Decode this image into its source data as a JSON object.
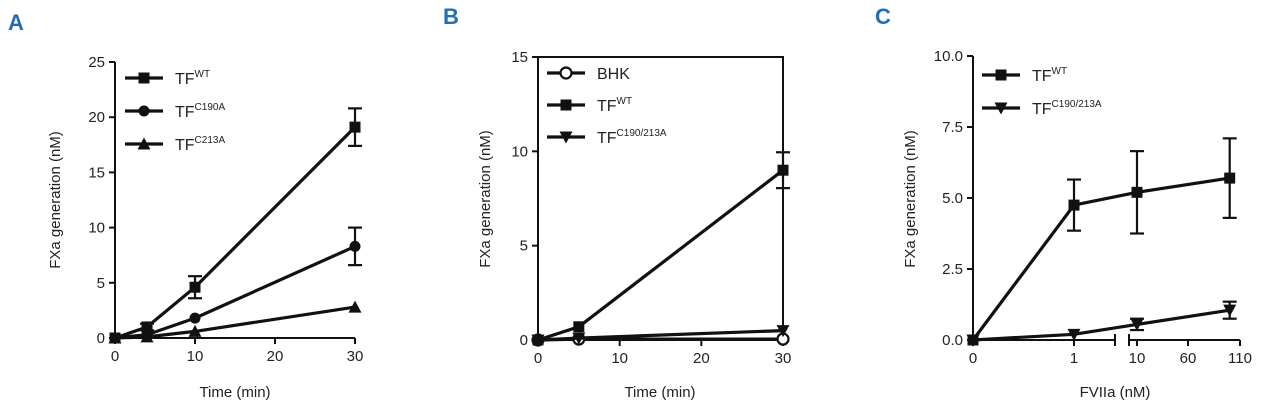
{
  "figure": {
    "colors": {
      "panel_letter": "#1f6fb2",
      "ink": "#111111"
    }
  },
  "chart_data": [
    {
      "panel": "A",
      "type": "line",
      "xlabel": "Time (min)",
      "ylabel": "FXa generation (nM)",
      "xlim": [
        0,
        30
      ],
      "ylim": [
        0,
        25
      ],
      "xticks": [
        0,
        10,
        20,
        30
      ],
      "yticks": [
        0,
        5,
        10,
        15,
        20,
        25
      ],
      "legend_position": "top-left",
      "x": [
        0,
        4,
        10,
        30
      ],
      "series": [
        {
          "name": "TF",
          "sup": "WT",
          "marker": "square",
          "values": [
            0,
            1.0,
            4.6,
            19.1
          ],
          "err": [
            0,
            0.3,
            1.0,
            1.7
          ]
        },
        {
          "name": "TF",
          "sup": "C190A",
          "marker": "circle",
          "values": [
            0,
            0.3,
            1.8,
            8.3
          ],
          "err": [
            0,
            0,
            0,
            1.7
          ]
        },
        {
          "name": "TF",
          "sup": "C213A",
          "marker": "triangle-up",
          "values": [
            0,
            0.1,
            0.6,
            2.8
          ],
          "err": [
            0,
            0,
            0,
            0
          ]
        }
      ]
    },
    {
      "panel": "B",
      "type": "line",
      "xlabel": "Time (min)",
      "ylabel": "FXa generation (nM)",
      "xlim": [
        0,
        30
      ],
      "ylim": [
        0,
        15
      ],
      "xticks": [
        0,
        10,
        20,
        30
      ],
      "yticks": [
        0,
        5,
        10,
        15
      ],
      "legend_position": "top-left",
      "x": [
        0,
        5,
        30
      ],
      "series": [
        {
          "name": "BHK",
          "sup": "",
          "marker": "circle-open",
          "values": [
            0,
            0.05,
            0.05
          ],
          "err": [
            0,
            0,
            0
          ]
        },
        {
          "name": "TF",
          "sup": "WT",
          "marker": "square",
          "values": [
            0,
            0.7,
            9.0
          ],
          "err": [
            0,
            0,
            0.95
          ]
        },
        {
          "name": "TF",
          "sup": "C190/213A",
          "marker": "triangle-down",
          "values": [
            0,
            0.1,
            0.5
          ],
          "err": [
            0,
            0,
            0
          ]
        }
      ]
    },
    {
      "panel": "C",
      "type": "line",
      "xlabel": "FVIIa (nM)",
      "ylabel": "FXa generation (nM)",
      "ylim": [
        0,
        10
      ],
      "xticks": [
        "0",
        "1",
        "10",
        "60",
        "110"
      ],
      "yticks": [
        "0.0",
        "2.5",
        "5.0",
        "7.5",
        "10.0"
      ],
      "x_scale": "segmented",
      "legend_position": "top-left",
      "x": [
        0,
        1,
        10,
        100
      ],
      "series": [
        {
          "name": "TF",
          "sup": "WT",
          "marker": "square",
          "values": [
            0,
            4.75,
            5.2,
            5.7
          ],
          "err": [
            0,
            0.9,
            1.45,
            1.4
          ]
        },
        {
          "name": "TF",
          "sup": "C190/213A",
          "marker": "triangle-down",
          "values": [
            0,
            0.2,
            0.55,
            1.05
          ],
          "err": [
            0,
            0,
            0.2,
            0.3
          ]
        }
      ]
    }
  ]
}
